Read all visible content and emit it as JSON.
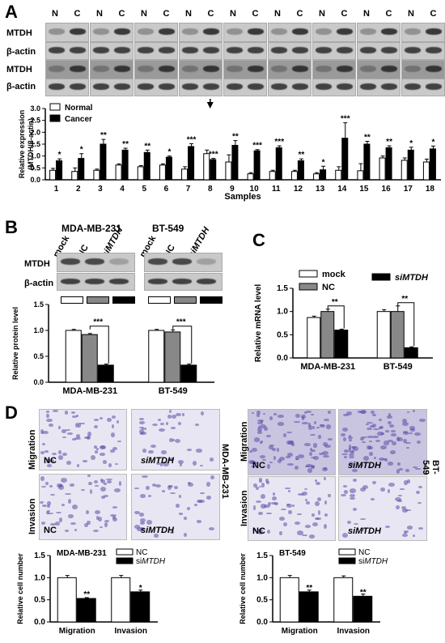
{
  "panels": {
    "A": "A",
    "B": "B",
    "C": "C",
    "D": "D"
  },
  "panelA": {
    "lane_headers": [
      "N",
      "C",
      "N",
      "C",
      "N",
      "C",
      "N",
      "C",
      "N",
      "C",
      "N",
      "C",
      "N",
      "C",
      "N",
      "C",
      "N",
      "C"
    ],
    "row_labels": [
      "MTDH",
      "β-actin",
      "MTDH",
      "β-actin"
    ]
  },
  "panelB": {
    "cell_lines": [
      "MDA-MB-231",
      "BT-549"
    ],
    "lanes": [
      "mock",
      "NC",
      "siMTDH",
      "mock",
      "NC",
      "siMTDH"
    ],
    "row_labels": [
      "MTDH",
      "β-actin"
    ]
  },
  "panelD": {
    "row_labels_left": [
      "Migration",
      "Invasion"
    ],
    "row_labels_right": [
      "Migration",
      "Invasion"
    ],
    "side_label_left": "MDA-MB-231",
    "side_label_right": "BT-549",
    "img_labels": [
      "NC",
      "siMTDH",
      "NC",
      "siMTDH",
      "NC",
      "siMTDH",
      "NC",
      "siMTDH"
    ]
  },
  "chart_data": [
    {
      "id": "A",
      "type": "bar",
      "xlabel": "Samples",
      "ylabel": "Relative expression (MTDH/β-actin)",
      "ylim": [
        0,
        3.0
      ],
      "ticks": [
        0.0,
        0.5,
        1.0,
        1.5,
        2.0,
        2.5,
        3.0
      ],
      "categories": [
        "1",
        "2",
        "3",
        "4",
        "5",
        "6",
        "7",
        "8",
        "9",
        "10",
        "11",
        "12",
        "13",
        "14",
        "15",
        "16",
        "17",
        "18"
      ],
      "series": [
        {
          "name": "Normal",
          "color": "#ffffff",
          "values": [
            0.4,
            0.35,
            0.4,
            0.62,
            0.55,
            0.62,
            0.45,
            1.1,
            0.75,
            0.25,
            0.35,
            0.35,
            0.25,
            0.4,
            0.38,
            0.92,
            0.82,
            0.75
          ],
          "errors": [
            0.08,
            0.15,
            0.05,
            0.05,
            0.05,
            0.05,
            0.1,
            0.15,
            0.3,
            0.05,
            0.05,
            0.05,
            0.05,
            0.15,
            0.3,
            0.08,
            0.1,
            0.12
          ]
        },
        {
          "name": "Cancer",
          "color": "#000000",
          "values": [
            0.8,
            0.9,
            1.5,
            1.25,
            1.15,
            0.95,
            1.4,
            0.85,
            1.45,
            1.22,
            1.35,
            0.8,
            0.42,
            1.75,
            1.5,
            1.35,
            1.25,
            1.3
          ],
          "errors": [
            0.08,
            0.2,
            0.2,
            0.08,
            0.1,
            0.05,
            0.12,
            0.05,
            0.2,
            0.05,
            0.08,
            0.08,
            0.15,
            0.65,
            0.12,
            0.08,
            0.12,
            0.12
          ]
        }
      ],
      "significance": [
        "*",
        "*",
        "**",
        "**",
        "**",
        "*",
        "***",
        "***",
        "**",
        "***",
        "***",
        "**",
        "*",
        "***",
        "**",
        "**",
        "*",
        "*"
      ],
      "legend": [
        "Normal",
        "Cancer"
      ],
      "legend_position": "top-left",
      "annotation": "arrow over sample 8"
    },
    {
      "id": "B",
      "type": "bar",
      "ylabel": "Relative protein level",
      "ylim": [
        0,
        1.5
      ],
      "ticks": [
        0.0,
        0.5,
        1.0,
        1.5
      ],
      "categories": [
        "MDA-MB-231",
        "BT-549"
      ],
      "series": [
        {
          "name": "mock",
          "color": "#ffffff",
          "values": [
            1.0,
            1.0
          ],
          "errors": [
            0.02,
            0.02
          ]
        },
        {
          "name": "NC",
          "color": "#888888",
          "values": [
            0.92,
            0.97
          ],
          "errors": [
            0.02,
            0.04
          ]
        },
        {
          "name": "siMTDH",
          "color": "#000000",
          "values": [
            0.33,
            0.33
          ],
          "errors": [
            0.02,
            0.02
          ]
        }
      ],
      "significance": [
        "***",
        "***"
      ]
    },
    {
      "id": "C",
      "type": "bar",
      "ylabel": "Relative mRNA level",
      "ylim": [
        0,
        1.5
      ],
      "ticks": [
        0.0,
        0.5,
        1.0,
        1.5
      ],
      "categories": [
        "MDA-MB-231",
        "BT-549"
      ],
      "series": [
        {
          "name": "mock",
          "color": "#ffffff",
          "values": [
            0.87,
            1.0
          ],
          "errors": [
            0.03,
            0.04
          ]
        },
        {
          "name": "NC",
          "color": "#888888",
          "values": [
            1.0,
            1.0
          ],
          "errors": [
            0.05,
            0.12
          ]
        },
        {
          "name": "siMTDH",
          "color": "#000000",
          "values": [
            0.6,
            0.22
          ],
          "errors": [
            0.02,
            0.02
          ]
        }
      ],
      "significance": [
        "**",
        "**"
      ],
      "legend": [
        "mock",
        "NC",
        "siMTDH"
      ],
      "legend_position": "top"
    },
    {
      "id": "D-left",
      "type": "bar",
      "title": "MDA-MB-231",
      "ylabel": "Relative cell number",
      "ylim": [
        0,
        1.5
      ],
      "ticks": [
        0.0,
        0.5,
        1.0,
        1.5
      ],
      "categories": [
        "Migration",
        "Invasion"
      ],
      "series": [
        {
          "name": "NC",
          "color": "#ffffff",
          "values": [
            1.0,
            1.0
          ],
          "errors": [
            0.05,
            0.05
          ]
        },
        {
          "name": "siMTDH",
          "color": "#000000",
          "values": [
            0.53,
            0.68
          ],
          "errors": [
            0.02,
            0.04
          ]
        }
      ],
      "significance": [
        "**",
        "*"
      ],
      "legend": [
        "NC",
        "siMTDH"
      ],
      "legend_position": "top-right"
    },
    {
      "id": "D-right",
      "type": "bar",
      "title": "BT-549",
      "ylabel": "Relative cell number",
      "ylim": [
        0,
        1.5
      ],
      "ticks": [
        0.0,
        0.5,
        1.0,
        1.5
      ],
      "categories": [
        "Migration",
        "Invasion"
      ],
      "series": [
        {
          "name": "NC",
          "color": "#ffffff",
          "values": [
            1.0,
            1.0
          ],
          "errors": [
            0.05,
            0.04
          ]
        },
        {
          "name": "siMTDH",
          "color": "#000000",
          "values": [
            0.68,
            0.58
          ],
          "errors": [
            0.04,
            0.05
          ]
        }
      ],
      "significance": [
        "**",
        "**"
      ],
      "legend": [
        "NC",
        "siMTDH"
      ],
      "legend_position": "top-right"
    }
  ]
}
